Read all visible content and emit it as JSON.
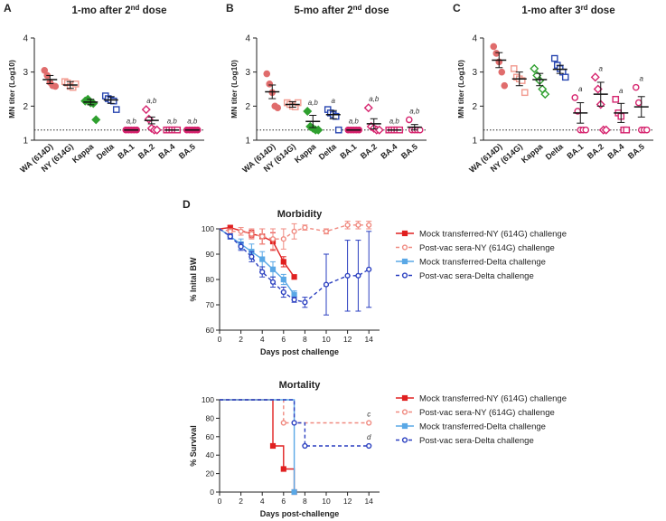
{
  "colors": {
    "wa": "#e06c6c",
    "ny": "#f29a8f",
    "kappa": "#2fa02f",
    "delta": "#2846b0",
    "ba": "#d6246e",
    "mock_ny": "#e02020",
    "post_ny": "#f08a80",
    "mock_delta": "#5aa8e6",
    "post_delta": "#2a3fc0",
    "axis": "#222222"
  },
  "chart_data": [
    {
      "panel_letter": "A",
      "type": "scatter",
      "title": "1-mo after 2nd dose",
      "title_main": "1-mo after 2",
      "title_sup": "nd",
      "title_tail": " dose",
      "ylabel": "MN titer (Log10)",
      "ylim": [
        1,
        4
      ],
      "yticks": [
        "1",
        "2",
        "3",
        "4"
      ],
      "lod": 1.3,
      "categories": [
        "WA (614D)",
        "NY (614G)",
        "Kappa",
        "Delta",
        "BA.1",
        "BA.2",
        "BA.4",
        "BA.5"
      ],
      "markers": [
        "circle",
        "square",
        "diamond",
        "square",
        "circle",
        "diamond",
        "square",
        "circle"
      ],
      "colorkeys": [
        "wa",
        "ny",
        "kappa",
        "delta",
        "ba",
        "ba",
        "ba",
        "ba"
      ],
      "filled": [
        true,
        false,
        true,
        false,
        true,
        false,
        false,
        true
      ],
      "means": [
        2.78,
        2.62,
        2.12,
        2.18,
        1.3,
        1.58,
        1.3,
        1.3
      ],
      "errors": [
        0.12,
        0.1,
        0.08,
        0.1,
        0,
        0.1,
        0,
        0
      ],
      "points": [
        [
          3.05,
          2.9,
          2.7,
          2.6,
          2.58
        ],
        [
          2.72,
          2.68,
          2.58,
          2.55,
          2.65
        ],
        [
          2.15,
          2.2,
          2.1,
          2.08,
          1.6
        ],
        [
          2.3,
          2.22,
          2.18,
          2.15,
          1.9
        ],
        [
          1.3,
          1.3,
          1.3,
          1.3,
          1.3
        ],
        [
          1.9,
          1.62,
          1.35,
          1.3,
          1.3
        ],
        [
          1.3,
          1.3,
          1.3,
          1.3,
          1.3
        ],
        [
          1.3,
          1.3,
          1.3,
          1.3,
          1.3
        ]
      ],
      "annotations": [
        "",
        "",
        "",
        "",
        "a,b",
        "a,b",
        "a,b",
        "a,b"
      ]
    },
    {
      "panel_letter": "B",
      "type": "scatter",
      "title": "5-mo after 2nd dose",
      "title_main": "5-mo after 2",
      "title_sup": "nd",
      "title_tail": " dose",
      "ylabel": "MN titer (Log10)",
      "ylim": [
        1,
        4
      ],
      "yticks": [
        "1",
        "2",
        "3",
        "4"
      ],
      "lod": 1.3,
      "categories": [
        "WA (614D)",
        "NY (614G)",
        "Kappa",
        "Delta",
        "BA.1",
        "BA.2",
        "BA.4",
        "BA.5"
      ],
      "markers": [
        "circle",
        "square",
        "diamond",
        "square",
        "circle",
        "diamond",
        "square",
        "circle"
      ],
      "colorkeys": [
        "wa",
        "ny",
        "kappa",
        "delta",
        "ba",
        "ba",
        "ba",
        "ba"
      ],
      "filled": [
        true,
        false,
        true,
        false,
        true,
        false,
        false,
        false
      ],
      "means": [
        2.42,
        2.05,
        1.55,
        1.75,
        1.3,
        1.48,
        1.3,
        1.38
      ],
      "errors": [
        0.2,
        0.08,
        0.18,
        0.12,
        0,
        0.15,
        0,
        0.08
      ],
      "points": [
        [
          2.95,
          2.65,
          2.4,
          2.0,
          1.95
        ],
        [
          2.1,
          2.05,
          2.0,
          1.98,
          2.1
        ],
        [
          1.85,
          1.4,
          1.35,
          1.3,
          1.3
        ],
        [
          1.9,
          1.8,
          1.75,
          1.7,
          1.3
        ],
        [
          1.3,
          1.3,
          1.3,
          1.3,
          1.3
        ],
        [
          1.95,
          1.4,
          1.35,
          1.3,
          1.3
        ],
        [
          1.3,
          1.3,
          1.3,
          1.3,
          1.3
        ],
        [
          1.6,
          1.3,
          1.3,
          1.3,
          1.3
        ]
      ],
      "annotations": [
        "",
        "",
        "a,b",
        "a",
        "a,b",
        "a,b",
        "a,b",
        "a,b"
      ]
    },
    {
      "panel_letter": "C",
      "type": "scatter",
      "title": "1-mo after 3rd dose",
      "title_main": "1-mo after 3",
      "title_sup": "rd",
      "title_tail": " dose",
      "ylabel": "MN titer (Log10)",
      "ylim": [
        1,
        4
      ],
      "yticks": [
        "1",
        "2",
        "3",
        "4"
      ],
      "lod": 1.3,
      "categories": [
        "WA (614D)",
        "NY (614G)",
        "Kappa",
        "Delta",
        "BA.1",
        "BA.2",
        "BA.4",
        "BA.5"
      ],
      "markers": [
        "circle",
        "square",
        "diamond",
        "square",
        "circle",
        "diamond",
        "square",
        "circle"
      ],
      "colorkeys": [
        "wa",
        "ny",
        "kappa",
        "delta",
        "ba",
        "ba",
        "ba",
        "ba"
      ],
      "filled": [
        true,
        false,
        false,
        false,
        false,
        false,
        false,
        false
      ],
      "means": [
        3.35,
        2.8,
        2.78,
        3.08,
        1.8,
        2.35,
        1.8,
        1.98
      ],
      "errors": [
        0.22,
        0.2,
        0.18,
        0.12,
        0.3,
        0.35,
        0.28,
        0.3
      ],
      "points": [
        [
          3.75,
          3.55,
          3.3,
          3.0,
          2.6
        ],
        [
          3.1,
          2.85,
          2.8,
          2.75,
          2.4
        ],
        [
          3.1,
          2.9,
          2.75,
          2.5,
          2.35
        ],
        [
          3.4,
          3.2,
          3.1,
          3.0,
          2.85
        ],
        [
          2.25,
          1.85,
          1.3,
          1.3,
          1.3
        ],
        [
          2.85,
          2.5,
          2.05,
          1.3,
          1.3
        ],
        [
          2.2,
          1.8,
          1.7,
          1.3,
          1.3
        ],
        [
          2.55,
          2.1,
          1.3,
          1.3,
          1.3
        ]
      ],
      "annotations": [
        "",
        "",
        "",
        "",
        "a",
        "a",
        "a",
        "a"
      ]
    },
    {
      "panel_letter": "D",
      "type": "line",
      "title": "Morbidity",
      "xlabel": "Days post challenge",
      "ylabel": "% Inital BW",
      "xlim": [
        0,
        15
      ],
      "ylim": [
        60,
        100
      ],
      "xticks": [
        "0",
        "2",
        "4",
        "6",
        "8",
        "10",
        "12",
        "14"
      ],
      "yticks": [
        "60",
        "70",
        "80",
        "90",
        "100"
      ],
      "series": [
        {
          "name": "Mock transferred-NY (614G) challenge",
          "colorkey": "mock_ny",
          "dashed": false,
          "marker": "square",
          "filled": true,
          "x": [
            0,
            1,
            3,
            4,
            5,
            6,
            7
          ],
          "y": [
            100,
            100.5,
            98,
            97,
            95,
            87,
            81
          ],
          "err": [
            0,
            0.8,
            1.5,
            3,
            3.5,
            2,
            0
          ]
        },
        {
          "name": "Post-vac sera-NY (614G) challenge",
          "colorkey": "post_ny",
          "dashed": true,
          "marker": "circle",
          "filled": false,
          "x": [
            0,
            1,
            2,
            3,
            4,
            5,
            6,
            7,
            8,
            10,
            12,
            13,
            14
          ],
          "y": [
            100,
            99,
            99,
            98,
            97,
            96,
            96,
            99,
            100.5,
            99,
            101.5,
            101.5,
            101.5
          ],
          "err": [
            0,
            1,
            1.5,
            2,
            3,
            4,
            4,
            3,
            1,
            1,
            1.5,
            1.5,
            1.5
          ]
        },
        {
          "name": "Mock transferred-Delta challenge",
          "colorkey": "mock_delta",
          "dashed": false,
          "marker": "square",
          "filled": true,
          "x": [
            0,
            1,
            2,
            3,
            4,
            5,
            6,
            7
          ],
          "y": [
            100,
            97,
            94,
            91,
            88,
            84,
            80,
            74
          ],
          "err": [
            0,
            1,
            2,
            3,
            3,
            3,
            2,
            1.5
          ]
        },
        {
          "name": "Post-vac sera-Delta challenge",
          "colorkey": "post_delta",
          "dashed": true,
          "marker": "circle",
          "filled": false,
          "x": [
            0,
            1,
            2,
            3,
            4,
            5,
            6,
            7,
            8,
            10,
            12,
            13,
            14
          ],
          "y": [
            100,
            97,
            93,
            89,
            83,
            79,
            75,
            72,
            71,
            78,
            81.5,
            81.5,
            84
          ],
          "err": [
            0,
            1,
            1.5,
            2,
            2,
            2,
            2,
            1,
            2,
            12,
            14,
            14,
            15
          ]
        }
      ]
    },
    {
      "panel_letter": "",
      "type": "line",
      "title": "Mortality",
      "xlabel": "Days post-challenge",
      "ylabel": "% Survival",
      "xlim": [
        0,
        15
      ],
      "ylim": [
        0,
        100
      ],
      "xticks": [
        "0",
        "2",
        "4",
        "6",
        "8",
        "10",
        "12",
        "14"
      ],
      "yticks": [
        "0",
        "20",
        "40",
        "60",
        "80",
        "100"
      ],
      "series": [
        {
          "name": "Mock transferred-NY (614G) challenge",
          "colorkey": "mock_ny",
          "dashed": false,
          "marker": "square",
          "filled": true,
          "x": [
            0,
            5,
            5,
            6,
            6,
            7,
            7
          ],
          "y": [
            100,
            100,
            50,
            50,
            25,
            25,
            0
          ],
          "markers_x": [
            5,
            6,
            7
          ],
          "markers_y": [
            50,
            25,
            0
          ]
        },
        {
          "name": "Post-vac sera-NY (614G) challenge",
          "colorkey": "post_ny",
          "dashed": true,
          "marker": "circle",
          "filled": false,
          "x": [
            0,
            6,
            6,
            14
          ],
          "y": [
            100,
            100,
            75,
            75
          ],
          "markers_x": [
            6,
            14
          ],
          "markers_y": [
            75,
            75
          ]
        },
        {
          "name": "Mock transferred-Delta challenge",
          "colorkey": "mock_delta",
          "dashed": false,
          "marker": "square",
          "filled": true,
          "x": [
            0,
            7,
            7
          ],
          "y": [
            100,
            100,
            0
          ],
          "markers_x": [
            7
          ],
          "markers_y": [
            0
          ]
        },
        {
          "name": "Post-vac sera-Delta challenge",
          "colorkey": "post_delta",
          "dashed": true,
          "marker": "circle",
          "filled": false,
          "x": [
            0,
            7,
            7,
            8,
            8,
            14
          ],
          "y": [
            100,
            100,
            75,
            75,
            50,
            50
          ],
          "markers_x": [
            7,
            8,
            14
          ],
          "markers_y": [
            75,
            50,
            50
          ]
        }
      ],
      "annotations": [
        {
          "text": "c",
          "x": 14,
          "y": 75
        },
        {
          "text": "d",
          "x": 14,
          "y": 50
        }
      ]
    }
  ]
}
